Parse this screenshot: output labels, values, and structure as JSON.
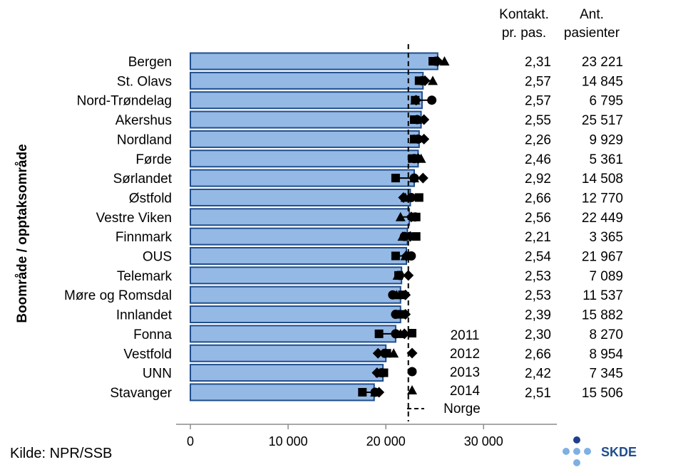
{
  "chart_data": {
    "type": "bar",
    "ylabel": "Boområde / opptaksområde",
    "categories": [
      "Bergen",
      "St. Olavs",
      "Nord-Trøndelag",
      "Akershus",
      "Nordland",
      "Førde",
      "Sørlandet",
      "Østfold",
      "Vestre Viken",
      "Finnmark",
      "OUS",
      "Telemark",
      "Møre og Romsdal",
      "Innlandet",
      "Fonna",
      "Vestfold",
      "UNN",
      "Stavanger"
    ],
    "values": [
      25300,
      23800,
      23700,
      23600,
      23400,
      23300,
      22900,
      22500,
      22400,
      22200,
      22100,
      21600,
      21500,
      21500,
      21000,
      20000,
      19700,
      18800
    ],
    "series": [
      {
        "name": "2011",
        "marker": "square",
        "values": [
          24800,
          23400,
          23000,
          22900,
          22900,
          22700,
          21000,
          23400,
          23100,
          23100,
          21000,
          21300,
          21700,
          21700,
          19300,
          20100,
          19800,
          17600
        ]
      },
      {
        "name": "2012",
        "marker": "diamond",
        "values": [
          25300,
          24000,
          23100,
          23900,
          23900,
          23300,
          23800,
          21800,
          22600,
          22500,
          22100,
          22300,
          22000,
          22000,
          21900,
          19200,
          19100,
          19300
        ]
      },
      {
        "name": "2013",
        "marker": "circle",
        "values": [
          25100,
          23700,
          24700,
          23200,
          23300,
          22900,
          22900,
          22600,
          23000,
          21900,
          22600,
          21400,
          20700,
          21000,
          21000,
          19900,
          19600,
          18900
        ]
      },
      {
        "name": "2014",
        "marker": "triangle",
        "values": [
          26000,
          24800,
          23000,
          23200,
          22900,
          23600,
          22900,
          22000,
          21500,
          21700,
          22000,
          21200,
          21100,
          21300,
          21500,
          20800,
          19400,
          18900
        ]
      }
    ],
    "reference": {
      "name": "Norge",
      "value": 22300
    },
    "xlim": [
      0,
      37500
    ],
    "xticks": [
      0,
      10000,
      20000,
      30000
    ],
    "xtick_labels": [
      "0",
      "10 000",
      "20 000",
      "30 000"
    ],
    "table": {
      "col1_header": [
        "Kontakt.",
        "pr. pas."
      ],
      "col2_header": [
        "Ant.",
        "pasienter"
      ],
      "col1": [
        "2,31",
        "2,57",
        "2,57",
        "2,55",
        "2,26",
        "2,46",
        "2,92",
        "2,66",
        "2,56",
        "2,21",
        "2,54",
        "2,53",
        "2,53",
        "2,39",
        "2,30",
        "2,66",
        "2,42",
        "2,51"
      ],
      "col2": [
        "23 221",
        "14 845",
        "6 795",
        "25 517",
        "9 929",
        "5 361",
        "14 508",
        "12 770",
        "22 449",
        "3 365",
        "21 967",
        "7 089",
        "11 537",
        "15 882",
        "8 270",
        "8 954",
        "7 345",
        "15 506"
      ]
    },
    "colors": {
      "bar": "#95b9e5",
      "bar_edge": "#1f4e8c",
      "marker": "#000000"
    }
  },
  "source": "Kilde: NPR/SSB",
  "logo": {
    "text": "SKDE",
    "icon": "skde-dots-logo",
    "colors": {
      "light": "#7fb0e3",
      "dark": "#1f3f8c"
    }
  }
}
